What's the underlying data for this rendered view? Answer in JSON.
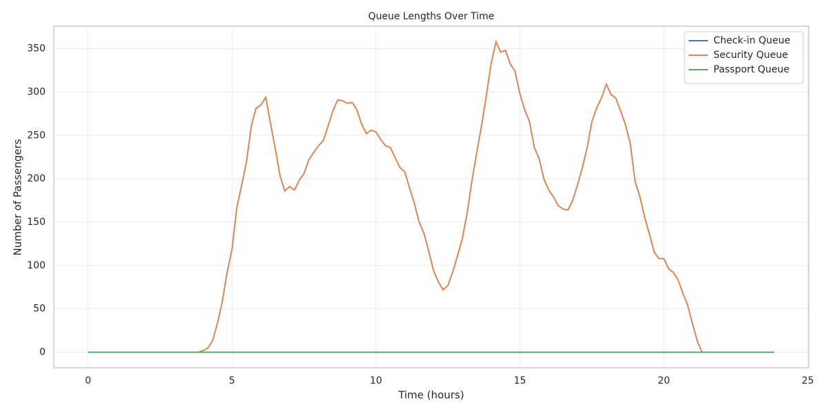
{
  "chart_data": {
    "type": "line",
    "title": "Queue Lengths Over Time",
    "x_label": "Time (hours)",
    "y_label": "Number of Passengers",
    "x": [
      0,
      0.17,
      0.33,
      0.5,
      0.67,
      0.83,
      1,
      1.17,
      1.33,
      1.5,
      1.67,
      1.83,
      2,
      2.17,
      2.33,
      2.5,
      2.67,
      2.83,
      3,
      3.17,
      3.33,
      3.5,
      3.67,
      3.83,
      4,
      4.17,
      4.33,
      4.5,
      4.67,
      4.83,
      5,
      5.17,
      5.33,
      5.5,
      5.67,
      5.83,
      6,
      6.17,
      6.33,
      6.5,
      6.67,
      6.83,
      7,
      7.17,
      7.33,
      7.5,
      7.67,
      7.83,
      8,
      8.17,
      8.33,
      8.5,
      8.67,
      8.83,
      9,
      9.17,
      9.33,
      9.5,
      9.67,
      9.83,
      10,
      10.17,
      10.33,
      10.5,
      10.67,
      10.83,
      11,
      11.17,
      11.33,
      11.5,
      11.67,
      11.83,
      12,
      12.17,
      12.33,
      12.5,
      12.67,
      12.83,
      13,
      13.17,
      13.33,
      13.5,
      13.67,
      13.83,
      14,
      14.17,
      14.33,
      14.5,
      14.67,
      14.83,
      15,
      15.17,
      15.33,
      15.5,
      15.67,
      15.83,
      16,
      16.17,
      16.33,
      16.5,
      16.67,
      16.83,
      17,
      17.17,
      17.33,
      17.5,
      17.67,
      17.83,
      18,
      18.17,
      18.33,
      18.5,
      18.67,
      18.83,
      19,
      19.17,
      19.33,
      19.5,
      19.67,
      19.83,
      20,
      20.17,
      20.33,
      20.5,
      20.67,
      20.83,
      21,
      21.17,
      21.33,
      21.5,
      21.67,
      21.83,
      22,
      22.17,
      22.33,
      22.5,
      22.67,
      22.83,
      23,
      23.17,
      23.33,
      23.5,
      23.67,
      23.83
    ],
    "series": [
      {
        "name": "Check-in Queue",
        "color": "#4c72b0",
        "values": [
          0,
          0,
          0,
          0,
          0,
          0,
          0,
          0,
          0,
          0,
          0,
          0,
          0,
          0,
          0,
          0,
          0,
          0,
          0,
          0,
          0,
          0,
          0,
          0,
          0,
          0,
          0,
          0,
          0,
          0,
          0,
          0,
          0,
          0,
          0,
          0,
          0,
          0,
          0,
          0,
          0,
          0,
          0,
          0,
          0,
          0,
          0,
          0,
          0,
          0,
          0,
          0,
          0,
          0,
          0,
          0,
          0,
          0,
          0,
          0,
          0,
          0,
          0,
          0,
          0,
          0,
          0,
          0,
          0,
          0,
          0,
          0,
          0,
          0,
          0,
          0,
          0,
          0,
          0,
          0,
          0,
          0,
          0,
          0,
          0,
          0,
          0,
          0,
          0,
          0,
          0,
          0,
          0,
          0,
          0,
          0,
          0,
          0,
          0,
          0,
          0,
          0,
          0,
          0,
          0,
          0,
          0,
          0,
          0,
          0,
          0,
          0,
          0,
          0,
          0,
          0,
          0,
          0,
          0,
          0,
          0,
          0,
          0,
          0,
          0,
          0,
          0,
          0,
          0,
          0,
          0,
          0,
          0,
          0,
          0,
          0,
          0,
          0,
          0,
          0,
          0,
          0,
          0,
          0
        ]
      },
      {
        "name": "Security Queue",
        "color": "#dd8452",
        "values": [
          0,
          0,
          0,
          0,
          0,
          0,
          0,
          0,
          0,
          0,
          0,
          0,
          0,
          0,
          0,
          0,
          0,
          0,
          0,
          0,
          0,
          0,
          0,
          0,
          2,
          5,
          14,
          34,
          60,
          92,
          119,
          167,
          192,
          219,
          261,
          281,
          285,
          294,
          265,
          235,
          203,
          186,
          191,
          187,
          198,
          206,
          222,
          230,
          238,
          244,
          260,
          278,
          291,
          290,
          287,
          288,
          280,
          263,
          252,
          256,
          254,
          245,
          238,
          236,
          224,
          213,
          208,
          189,
          172,
          150,
          137,
          117,
          94,
          81,
          72,
          77,
          93,
          111,
          131,
          161,
          197,
          230,
          262,
          295,
          333,
          358,
          346,
          348,
          332,
          324,
          298,
          279,
          266,
          236,
          223,
          200,
          187,
          179,
          169,
          165,
          164,
          175,
          193,
          213,
          235,
          266,
          282,
          293,
          309,
          297,
          293,
          278,
          262,
          241,
          197,
          179,
          156,
          136,
          115,
          108,
          108,
          96,
          92,
          83,
          67,
          54,
          32,
          12,
          0,
          0,
          0,
          0,
          0,
          0,
          0,
          0,
          0,
          0,
          0,
          0,
          0,
          0,
          0,
          0
        ]
      },
      {
        "name": "Passport Queue",
        "color": "#55a868",
        "values": [
          0,
          0,
          0,
          0,
          0,
          0,
          0,
          0,
          0,
          0,
          0,
          0,
          0,
          0,
          0,
          0,
          0,
          0,
          0,
          0,
          0,
          0,
          0,
          0,
          0,
          0,
          0,
          0,
          0,
          0,
          0,
          0,
          0,
          0,
          0,
          0,
          0,
          0,
          0,
          0,
          0,
          0,
          0,
          0,
          0,
          0,
          0,
          0,
          0,
          0,
          0,
          0,
          0,
          0,
          0,
          0,
          0,
          0,
          0,
          0,
          0,
          0,
          0,
          0,
          0,
          0,
          0,
          0,
          0,
          0,
          0,
          0,
          0,
          0,
          0,
          0,
          0,
          0,
          0,
          0,
          0,
          0,
          0,
          0,
          0,
          0,
          0,
          0,
          0,
          0,
          0,
          0,
          0,
          0,
          0,
          0,
          0,
          0,
          0,
          0,
          0,
          0,
          0,
          0,
          0,
          0,
          0,
          0,
          0,
          0,
          0,
          0,
          0,
          0,
          0,
          0,
          0,
          0,
          0,
          0,
          0,
          0,
          0,
          0,
          0,
          0,
          0,
          0,
          0,
          0,
          0,
          0,
          0,
          0,
          0,
          0,
          0,
          0,
          0,
          0,
          0,
          0,
          0,
          0
        ]
      }
    ],
    "xlim": [
      -1.19,
      25.03
    ],
    "ylim": [
      -17.9,
      375.9
    ],
    "xticks": [
      0,
      5,
      10,
      15,
      20,
      25
    ],
    "yticks": [
      0,
      50,
      100,
      150,
      200,
      250,
      300,
      350
    ],
    "grid": true,
    "legend": "upper right"
  }
}
